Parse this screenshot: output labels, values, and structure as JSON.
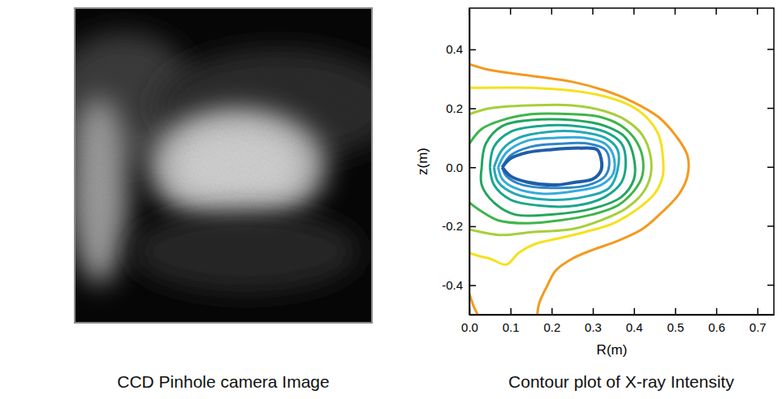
{
  "image": {
    "caption": "CCD Pinhole camera Image"
  },
  "chart_data": {
    "type": "contour",
    "title": "Contour plot of X-ray Intensity",
    "x_label": "R(m)",
    "y_label": "z(m)",
    "xlim": [
      0,
      0.74
    ],
    "ylim": [
      -0.5,
      0.54
    ],
    "xticks": [
      {
        "value": 0,
        "label": "0.0"
      },
      0.1,
      0.2,
      0.3,
      0.4,
      0.5,
      0.6,
      0.7
    ],
    "yticks": [
      -0.4,
      -0.2,
      {
        "value": 0,
        "label": "0.0"
      },
      0.2,
      0.4
    ],
    "series": [
      {
        "color": "#f39a1e",
        "x": [
          0.0,
          0.05,
          0.15,
          0.25,
          0.33,
          0.4,
          0.46,
          0.5,
          0.53,
          0.53,
          0.51,
          0.47,
          0.42,
          0.36,
          0.3,
          0.25,
          0.21,
          0.19,
          0.17,
          0.165,
          null,
          0.0,
          0.01,
          0.02
        ],
        "values": [
          0.35,
          0.33,
          0.31,
          0.29,
          0.26,
          0.22,
          0.17,
          0.11,
          0.04,
          -0.03,
          -0.09,
          -0.15,
          -0.21,
          -0.25,
          -0.28,
          -0.31,
          -0.35,
          -0.4,
          -0.46,
          -0.5,
          null,
          -0.43,
          -0.47,
          -0.5
        ]
      },
      {
        "color": "#f5e11c",
        "x": [
          0.0,
          0.05,
          0.15,
          0.25,
          0.33,
          0.39,
          0.43,
          0.46,
          0.47,
          0.47,
          0.45,
          0.41,
          0.35,
          0.28,
          0.22,
          0.16,
          0.12,
          0.09,
          0.05,
          0.02,
          0.0
        ],
        "values": [
          0.27,
          0.27,
          0.27,
          0.26,
          0.24,
          0.21,
          0.17,
          0.11,
          0.04,
          -0.03,
          -0.09,
          -0.14,
          -0.19,
          -0.22,
          -0.24,
          -0.26,
          -0.29,
          -0.33,
          -0.31,
          -0.3,
          -0.29
        ]
      },
      {
        "color": "#a6cf3a",
        "x": [
          0.0,
          0.05,
          0.15,
          0.25,
          0.33,
          0.38,
          0.42,
          0.44,
          0.44,
          0.42,
          0.38,
          0.32,
          0.25,
          0.15,
          0.08,
          0.03,
          0.0
        ],
        "values": [
          0.18,
          0.2,
          0.21,
          0.21,
          0.19,
          0.16,
          0.11,
          0.04,
          -0.03,
          -0.09,
          -0.14,
          -0.18,
          -0.21,
          -0.22,
          -0.23,
          -0.22,
          -0.21
        ]
      },
      {
        "color": "#3fb548",
        "x": [
          0.0,
          0.03,
          0.08,
          0.15,
          0.25,
          0.32,
          0.37,
          0.4,
          0.42,
          0.42,
          0.4,
          0.36,
          0.3,
          0.22,
          0.14,
          0.07,
          0.03,
          0.0
        ],
        "values": [
          0.08,
          0.13,
          0.16,
          0.18,
          0.18,
          0.17,
          0.14,
          0.1,
          0.04,
          -0.03,
          -0.08,
          -0.13,
          -0.16,
          -0.18,
          -0.19,
          -0.18,
          -0.15,
          -0.12
        ]
      },
      {
        "color": "#22a65e",
        "x": [
          0.03,
          0.04,
          0.08,
          0.15,
          0.25,
          0.33,
          0.38,
          0.4,
          0.4,
          0.37,
          0.3,
          0.2,
          0.11,
          0.06,
          0.03,
          0.03
        ],
        "values": [
          0.0,
          0.08,
          0.14,
          0.16,
          0.16,
          0.14,
          0.1,
          0.03,
          -0.04,
          -0.1,
          -0.14,
          -0.16,
          -0.16,
          -0.12,
          -0.06,
          0.0
        ]
      },
      {
        "color": "#1aa68d",
        "x": [
          0.05,
          0.06,
          0.1,
          0.17,
          0.26,
          0.33,
          0.37,
          0.38,
          0.37,
          0.33,
          0.26,
          0.17,
          0.1,
          0.06,
          0.05
        ],
        "values": [
          0.0,
          0.07,
          0.12,
          0.14,
          0.14,
          0.12,
          0.08,
          0.02,
          -0.05,
          -0.1,
          -0.13,
          -0.13,
          -0.11,
          -0.06,
          0.0
        ]
      },
      {
        "color": "#22a8b4",
        "x": [
          0.06,
          0.08,
          0.12,
          0.19,
          0.27,
          0.33,
          0.36,
          0.36,
          0.34,
          0.28,
          0.19,
          0.11,
          0.07,
          0.06
        ],
        "values": [
          0.0,
          0.06,
          0.1,
          0.12,
          0.12,
          0.1,
          0.06,
          -0.01,
          -0.07,
          -0.1,
          -0.11,
          -0.09,
          -0.05,
          0.0
        ]
      },
      {
        "color": "#35aadb",
        "x": [
          0.07,
          0.09,
          0.14,
          0.21,
          0.28,
          0.33,
          0.35,
          0.35,
          0.32,
          0.26,
          0.18,
          0.11,
          0.08,
          0.07
        ],
        "values": [
          0.0,
          0.05,
          0.09,
          0.1,
          0.1,
          0.08,
          0.04,
          -0.02,
          -0.06,
          -0.08,
          -0.09,
          -0.07,
          -0.04,
          0.0
        ]
      },
      {
        "color": "#2f86c8",
        "x": [
          0.08,
          0.1,
          0.15,
          0.22,
          0.29,
          0.33,
          0.34,
          0.33,
          0.29,
          0.21,
          0.13,
          0.09,
          0.08
        ],
        "values": [
          0.0,
          0.04,
          0.07,
          0.08,
          0.08,
          0.06,
          0.02,
          -0.03,
          -0.06,
          -0.07,
          -0.06,
          -0.03,
          0.0
        ]
      },
      {
        "color": "#1f5ea8",
        "x": [
          0.08,
          0.1,
          0.14,
          0.2,
          0.27,
          0.31,
          0.32,
          0.32,
          0.3,
          0.26,
          0.21,
          0.14,
          0.1,
          0.08
        ],
        "values": [
          0.0,
          0.03,
          0.05,
          0.06,
          0.065,
          0.06,
          0.03,
          -0.01,
          -0.04,
          -0.05,
          -0.06,
          -0.05,
          -0.03,
          0.0
        ]
      }
    ]
  }
}
